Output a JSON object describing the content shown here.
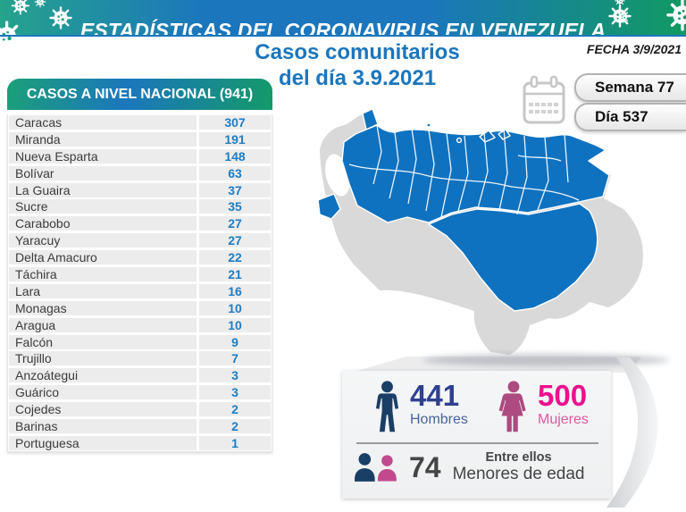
{
  "banner": {
    "title": "ESTADÍSTICAS DEL CORONAVIRUS EN VENEZUELA"
  },
  "subtitle": {
    "line1": "Casos comunitarios",
    "line2": "del día 3.9.2021"
  },
  "date_label": "FECHA 3/9/2021",
  "badges": {
    "week": "Semana 77",
    "day": "Día 537"
  },
  "table": {
    "header": "CASOS A NIVEL NACIONAL (941)",
    "rows": [
      {
        "state": "Caracas",
        "value": "307"
      },
      {
        "state": "Miranda",
        "value": "191"
      },
      {
        "state": "Nueva Esparta",
        "value": "148"
      },
      {
        "state": "Bolívar",
        "value": "63"
      },
      {
        "state": "La Guaira",
        "value": "37"
      },
      {
        "state": "Sucre",
        "value": "35"
      },
      {
        "state": "Carabobo",
        "value": "27"
      },
      {
        "state": "Yaracuy",
        "value": "27"
      },
      {
        "state": "Delta Amacuro",
        "value": "22"
      },
      {
        "state": "Táchira",
        "value": "21"
      },
      {
        "state": "Lara",
        "value": "16"
      },
      {
        "state": "Monagas",
        "value": "10"
      },
      {
        "state": "Aragua",
        "value": "10"
      },
      {
        "state": "Falcón",
        "value": "9"
      },
      {
        "state": "Trujillo",
        "value": "7"
      },
      {
        "state": "Anzoátegui",
        "value": "3"
      },
      {
        "state": "Guárico",
        "value": "3"
      },
      {
        "state": "Cojedes",
        "value": "2"
      },
      {
        "state": "Barinas",
        "value": "2"
      },
      {
        "state": "Portuguesa",
        "value": "1"
      }
    ]
  },
  "stats": {
    "hombres": {
      "value": "441",
      "label": "Hombres"
    },
    "mujeres": {
      "value": "500",
      "label": "Mujeres"
    },
    "menores": {
      "value": "74",
      "line1": "Entre ellos",
      "line2": "Menores de edad"
    }
  },
  "colors": {
    "banner_teal": "#25a38b",
    "banner_blue": "#1b76bd",
    "banner_green": "#119a61",
    "title_blue": "#1b76bd",
    "value_blue": "#1e7dc4",
    "map_blue": "#0f72c0",
    "map_gray": "#d9d9d9",
    "hombres_blue": "#2e4090",
    "mujeres_pink": "#ec1190",
    "male_icon_navy": "#1a3f66",
    "female_icon_mauve": "#ad4a80"
  },
  "chart_data": {
    "type": "table",
    "title": "CASOS A NIVEL NACIONAL (941)",
    "subtitle": "Casos comunitarios del día 3.9.2021",
    "date": "3/9/2021",
    "week": 77,
    "day": 537,
    "categories": [
      "Caracas",
      "Miranda",
      "Nueva Esparta",
      "Bolívar",
      "La Guaira",
      "Sucre",
      "Carabobo",
      "Yaracuy",
      "Delta Amacuro",
      "Táchira",
      "Lara",
      "Monagas",
      "Aragua",
      "Falcón",
      "Trujillo",
      "Anzoátegui",
      "Guárico",
      "Cojedes",
      "Barinas",
      "Portuguesa"
    ],
    "values": [
      307,
      191,
      148,
      63,
      37,
      35,
      27,
      27,
      22,
      21,
      16,
      10,
      10,
      9,
      7,
      3,
      3,
      2,
      2,
      1
    ],
    "total": 941,
    "summary": {
      "hombres": 441,
      "mujeres": 500,
      "menores_de_edad": 74
    }
  }
}
